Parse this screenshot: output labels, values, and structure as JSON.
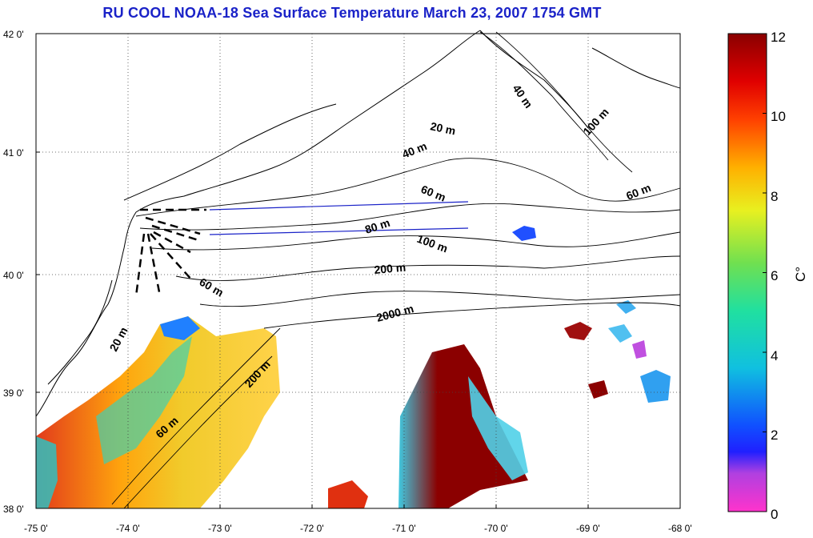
{
  "title": "RU COOL  NOAA-18 Sea Surface Temperature March 23, 2007 1754 GMT",
  "colors": {
    "title": "#1a22c8"
  },
  "map": {
    "lon_ticks": [
      "-75 0'",
      "-74 0'",
      "-73 0'",
      "-72 0'",
      "-71 0'",
      "-70 0'",
      "-69 0'",
      "-68 0'"
    ],
    "lat_ticks": [
      "42 0'",
      "41 0'",
      "40 0'",
      "39 0'",
      "38 0'"
    ],
    "lon_range": [
      -75,
      -68
    ],
    "lat_range": [
      38,
      42
    ],
    "contour_labels": [
      "40 m",
      "20 m",
      "40 m",
      "100 m",
      "60 m",
      "60 m",
      "80 m",
      "100 m",
      "200 m",
      "60 m",
      "2000 m",
      "20 m",
      "200 m",
      "60 m"
    ]
  },
  "colorbar": {
    "unit_label": "C°",
    "ticks": [
      "0",
      "2",
      "4",
      "6",
      "8",
      "10",
      "12"
    ],
    "range": [
      0,
      12
    ]
  }
}
